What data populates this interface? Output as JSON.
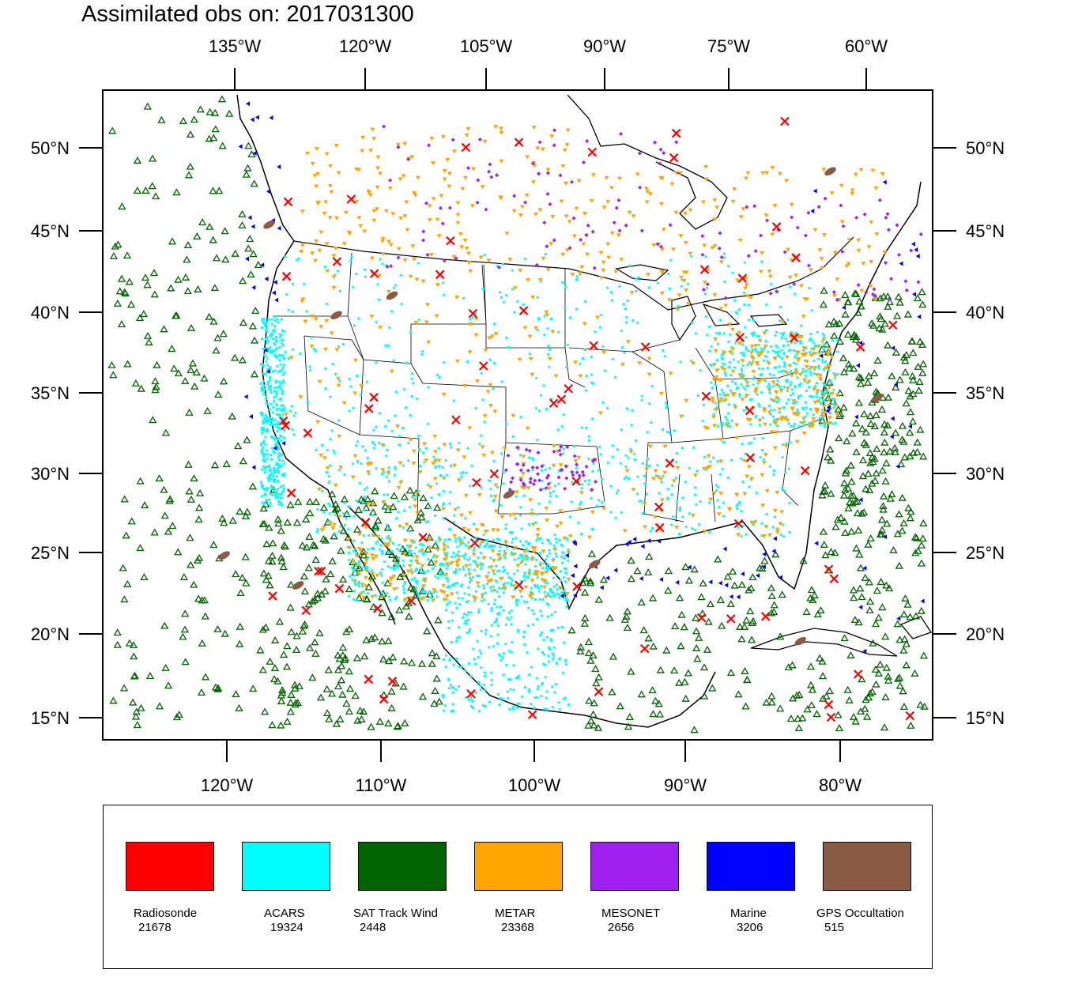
{
  "title": "Assimilated obs on: 2017031300",
  "map": {
    "top_lon_labels": [
      "135°W",
      "120°W",
      "105°W",
      "90°W",
      "75°W",
      "60°W"
    ],
    "bottom_lon_labels": [
      "120°W",
      "110°W",
      "100°W",
      "90°W",
      "80°W"
    ],
    "lat_labels": [
      "50°N",
      "45°N",
      "40°N",
      "35°N",
      "30°N",
      "25°N",
      "20°N",
      "15°N"
    ]
  },
  "legend": [
    {
      "name": "Radiosonde",
      "count": "21678",
      "color": "#ff0000"
    },
    {
      "name": "ACARS",
      "count": "19324",
      "color": "#00ffff"
    },
    {
      "name": "SAT Track Wind",
      "count": "2448",
      "color": "#006400"
    },
    {
      "name": "METAR",
      "count": "23368",
      "color": "#ffa500"
    },
    {
      "name": "MESONET",
      "count": "2656",
      "color": "#a020f0"
    },
    {
      "name": "Marine",
      "count": "3206",
      "color": "#0000ff"
    },
    {
      "name": "GPS Occultation",
      "count": "515",
      "color": "#8b5a44"
    }
  ]
}
